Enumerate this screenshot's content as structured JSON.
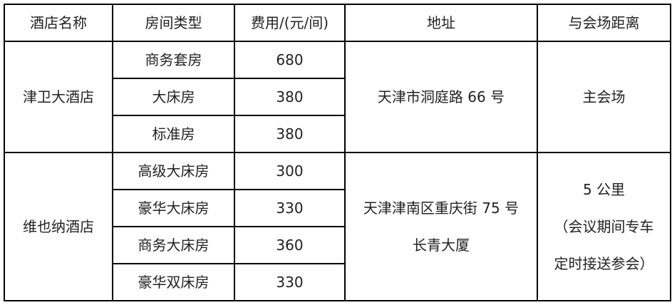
{
  "headers": [
    "酒店名称",
    "房间类型",
    "费用/(元/间)",
    "地址",
    "与会场距离"
  ],
  "hotels": [
    {
      "name": "津卫大酒店",
      "address": [
        "天津市洞庭路 66 号"
      ],
      "distance": [
        "主会场"
      ],
      "rooms": [
        {
          "type": "商务套房",
          "price": "680"
        },
        {
          "type": "大床房",
          "price": "380"
        },
        {
          "type": "标准房",
          "price": "380"
        }
      ]
    },
    {
      "name": "维也纳酒店",
      "address": [
        "天津津南区重庆街 75 号",
        "长青大厦"
      ],
      "distance": [
        "5 公里",
        "（会议期间专车",
        "定时接送参会）"
      ],
      "rooms": [
        {
          "type": "高级大床房",
          "price": "300"
        },
        {
          "type": "豪华大床房",
          "price": "330"
        },
        {
          "type": "商务大床房",
          "price": "360"
        },
        {
          "type": "豪华双床房",
          "price": "330"
        }
      ]
    }
  ]
}
